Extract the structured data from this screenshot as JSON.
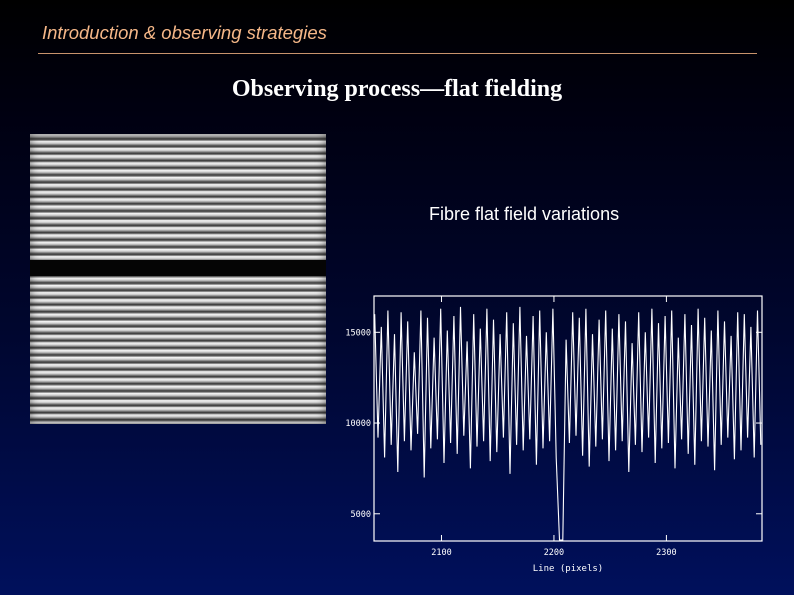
{
  "header": {
    "title": "Introduction & observing strategies"
  },
  "slide": {
    "title": "Observing process—flat fielding"
  },
  "image": {
    "description_label": ""
  },
  "plot": {
    "caption": "Fibre flat field variations",
    "line_color": "#ffffff",
    "frame_color": "#ffffff"
  },
  "chart_data": {
    "type": "line",
    "title": "Fibre flat field variations",
    "xlabel": "Line (pixels)",
    "ylabel": "",
    "xlim": [
      2040,
      2385
    ],
    "ylim": [
      3500,
      17000
    ],
    "xticks": [
      2100,
      2200,
      2300
    ],
    "yticks": [
      5000,
      10000,
      15000
    ],
    "xtick_labels": [
      "2100",
      "2200",
      "2300"
    ],
    "ytick_labels": [
      "5000",
      "10000",
      "15000"
    ],
    "peak_period_px": 6.6,
    "gap": {
      "x_start": 2200,
      "x_end": 2207,
      "min": 3500
    },
    "series": [
      {
        "peaks": [
          16000,
          15300,
          16200,
          14900,
          16100,
          15600,
          13900,
          16200,
          15800,
          14700,
          16300,
          15100,
          15900,
          16400,
          14500,
          16000,
          15200,
          16300,
          15700,
          14900,
          16100,
          15500,
          16400,
          14800,
          15900,
          16200,
          15000,
          16300,
          15600,
          14600,
          16100,
          15800,
          16300,
          14900,
          15700,
          16200,
          15200,
          16000,
          15600,
          14400,
          16100,
          15000,
          16300,
          15500,
          15900,
          16200,
          14700,
          16000,
          15400,
          16300,
          15800,
          15100,
          16200,
          15600,
          14800,
          16100
        ],
        "troughs": [
          9200,
          8100,
          8800,
          7300,
          9000,
          8500,
          9400,
          7000,
          8600,
          9100,
          7800,
          8900,
          8300,
          9300,
          7500,
          8700,
          9000,
          7900,
          8400,
          9200,
          7200,
          8800,
          8500,
          9100,
          7700,
          8600,
          9000,
          8100,
          7400,
          8900,
          9300,
          8200,
          7600,
          8700,
          9100,
          7900,
          8500,
          9000,
          7300,
          8800,
          8400,
          9200,
          7800,
          8600,
          8900,
          7500,
          9100,
          8300,
          7700,
          9000,
          8700,
          7400,
          8800,
          9200,
          8000,
          8500
        ]
      }
    ]
  }
}
